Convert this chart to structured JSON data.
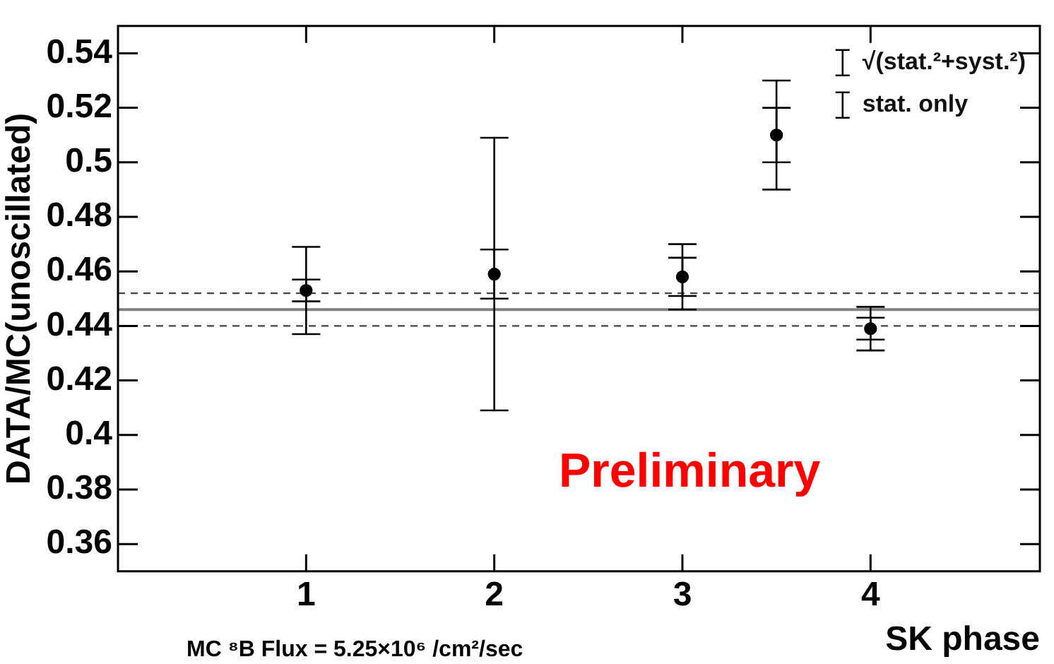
{
  "chart_data": {
    "type": "scatter",
    "xlabel": "SK phase",
    "ylabel": "DATA/MC(unoscillated)",
    "x": [
      1,
      2,
      3,
      3.5,
      4
    ],
    "series": [
      {
        "name": "√(stat.²+syst.²)",
        "color": "#000000",
        "values": [
          0.453,
          0.459,
          0.458,
          0.51,
          0.439
        ],
        "errors": [
          0.016,
          0.05,
          0.012,
          0.02,
          0.008
        ]
      },
      {
        "name": "stat. only",
        "color": "#000000",
        "values": [
          0.453,
          0.459,
          0.458,
          0.51,
          0.439
        ],
        "errors": [
          0.004,
          0.009,
          0.007,
          0.01,
          0.004
        ]
      }
    ],
    "xlim": [
      0,
      4.9
    ],
    "xticks": [
      1,
      2,
      3,
      4
    ],
    "ylim": [
      0.35,
      0.55
    ],
    "yticks": [
      0.36,
      0.38,
      0.4,
      0.42,
      0.44,
      0.46,
      0.48,
      0.5,
      0.52,
      0.54
    ],
    "ref_lines": [
      {
        "axis": "y",
        "value": 0.446,
        "color": "#808080",
        "line_style": "solid"
      },
      {
        "axis": "y",
        "value": 0.452,
        "color": "#444444",
        "line_style": "dashed"
      },
      {
        "axis": "y",
        "value": 0.44,
        "color": "#444444",
        "line_style": "dashed"
      }
    ],
    "annotations": [
      "Preliminary",
      "MC ⁸B Flux = 5.25×10⁶ /cm²/sec"
    ],
    "legend": "top right",
    "marker": "circle",
    "grid": false
  }
}
